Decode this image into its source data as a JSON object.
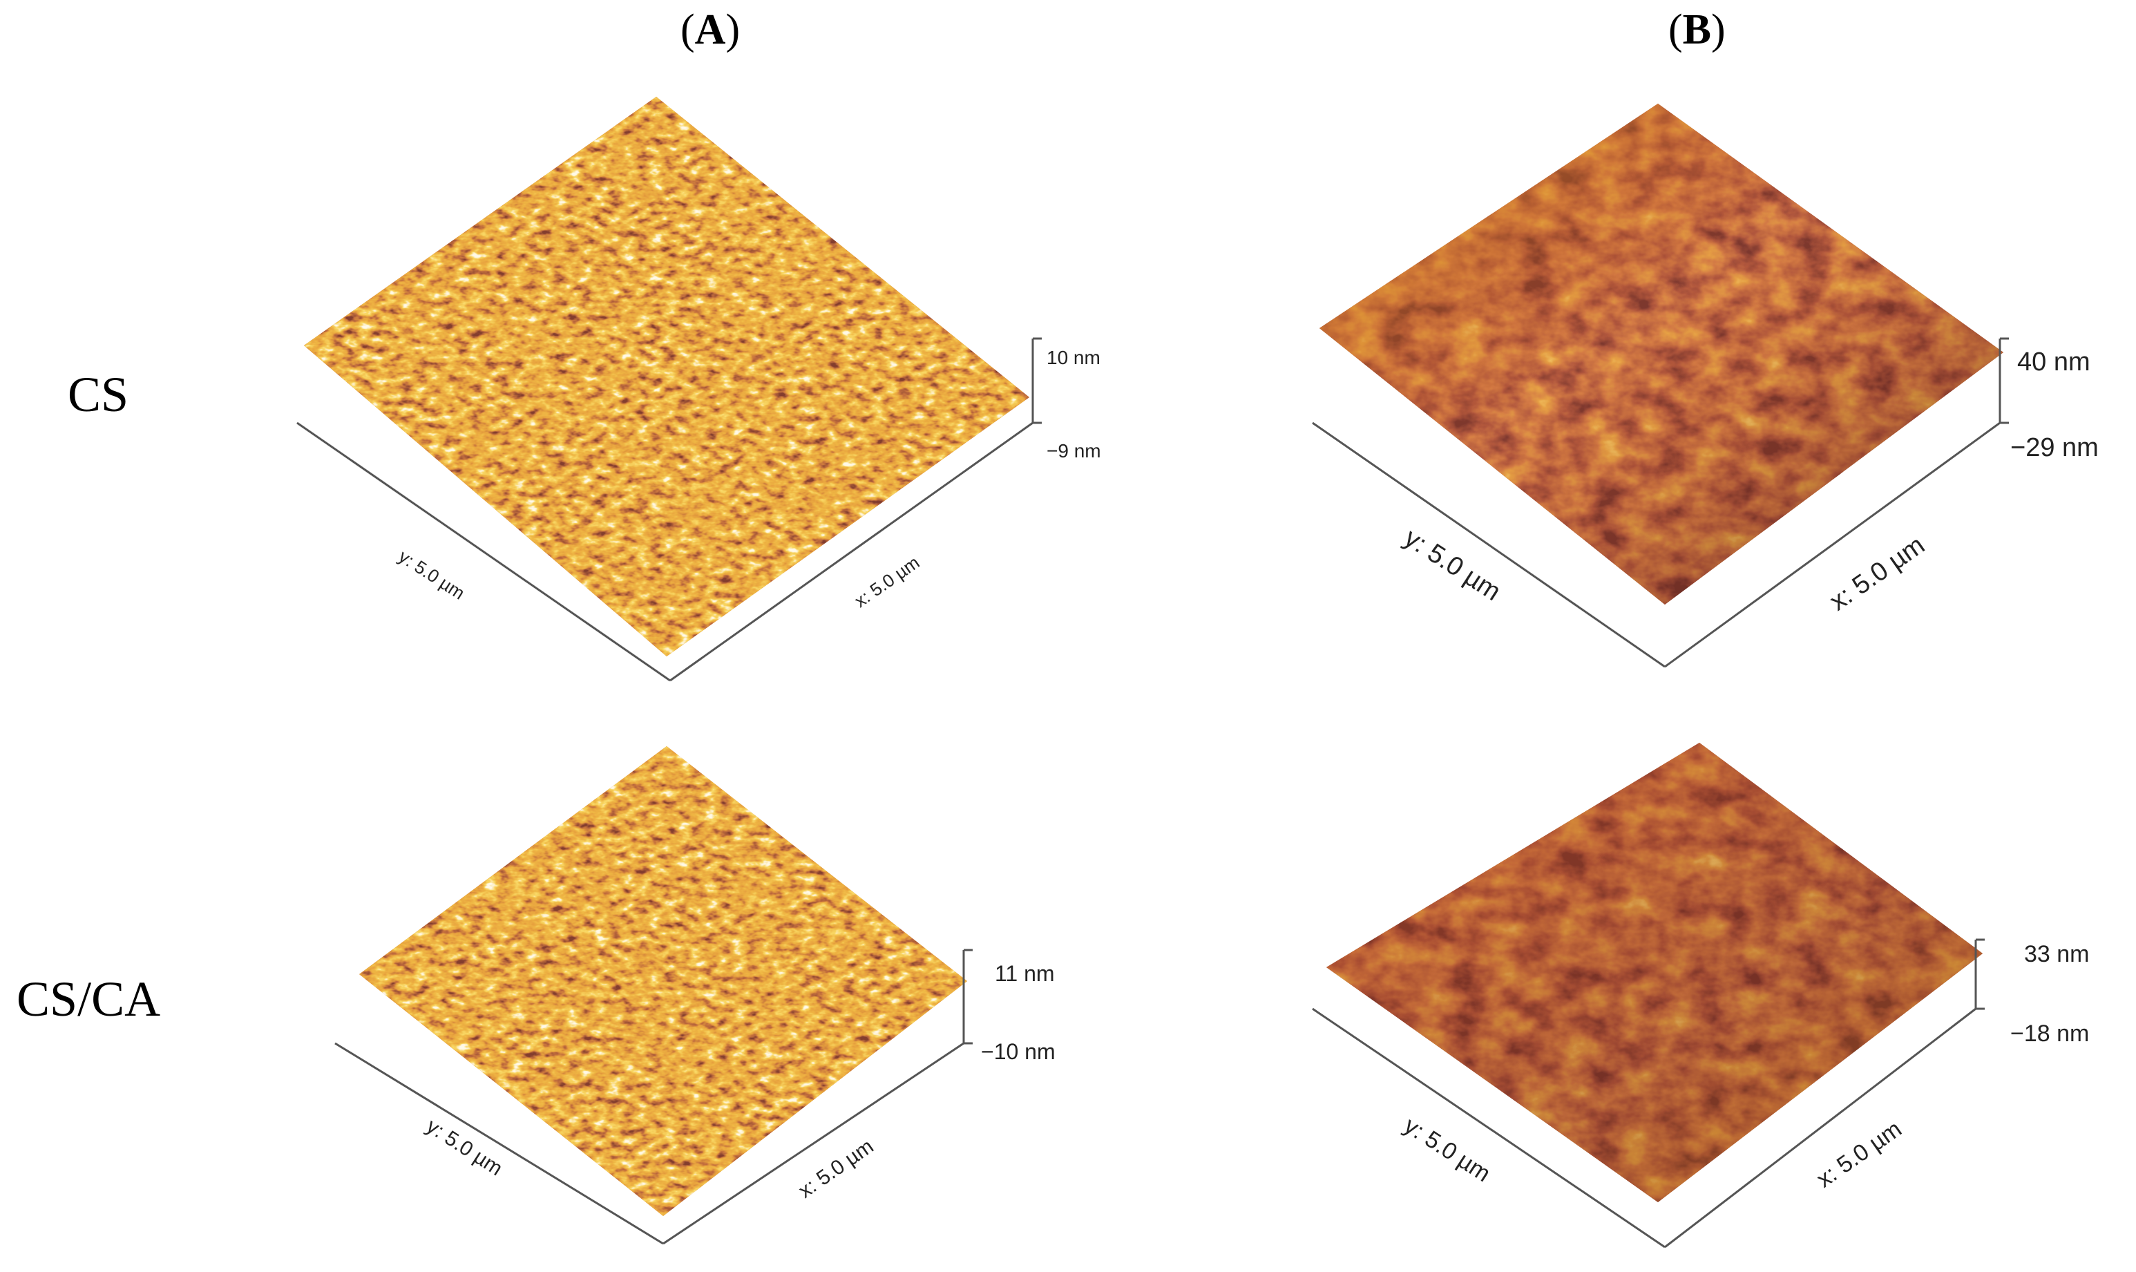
{
  "column_headers": [
    {
      "open": "(",
      "letter": "A",
      "close": ")"
    },
    {
      "open": "(",
      "letter": "B",
      "close": ")"
    }
  ],
  "row_labels": [
    "CS",
    "CS/CA"
  ],
  "panels": [
    {
      "id": "A-CS",
      "x_label": "x: 5.0 µm",
      "y_label": "y: 5.0 µm",
      "z_max": "10 nm",
      "z_min": "−9 nm",
      "texture": "spiky"
    },
    {
      "id": "B-CS",
      "x_label": "x: 5.0 µm",
      "y_label": "y: 5.0 µm",
      "z_max": "40 nm",
      "z_min": "−29 nm",
      "texture": "smooth"
    },
    {
      "id": "A-CSCA",
      "x_label": "x: 5.0 µm",
      "y_label": "y: 5.0 µm",
      "z_max": "11 nm",
      "z_min": "−10 nm",
      "texture": "spiky"
    },
    {
      "id": "B-CSCA",
      "x_label": "x: 5.0 µm",
      "y_label": "y: 5.0 µm",
      "z_max": "33 nm",
      "z_min": "−18 nm",
      "texture": "smooth"
    }
  ],
  "colors": {
    "dark": "#3a0c08",
    "mid": "#a8380c",
    "orange": "#d8780e",
    "light": "#f2b020",
    "highlight": "#fff3d0"
  }
}
